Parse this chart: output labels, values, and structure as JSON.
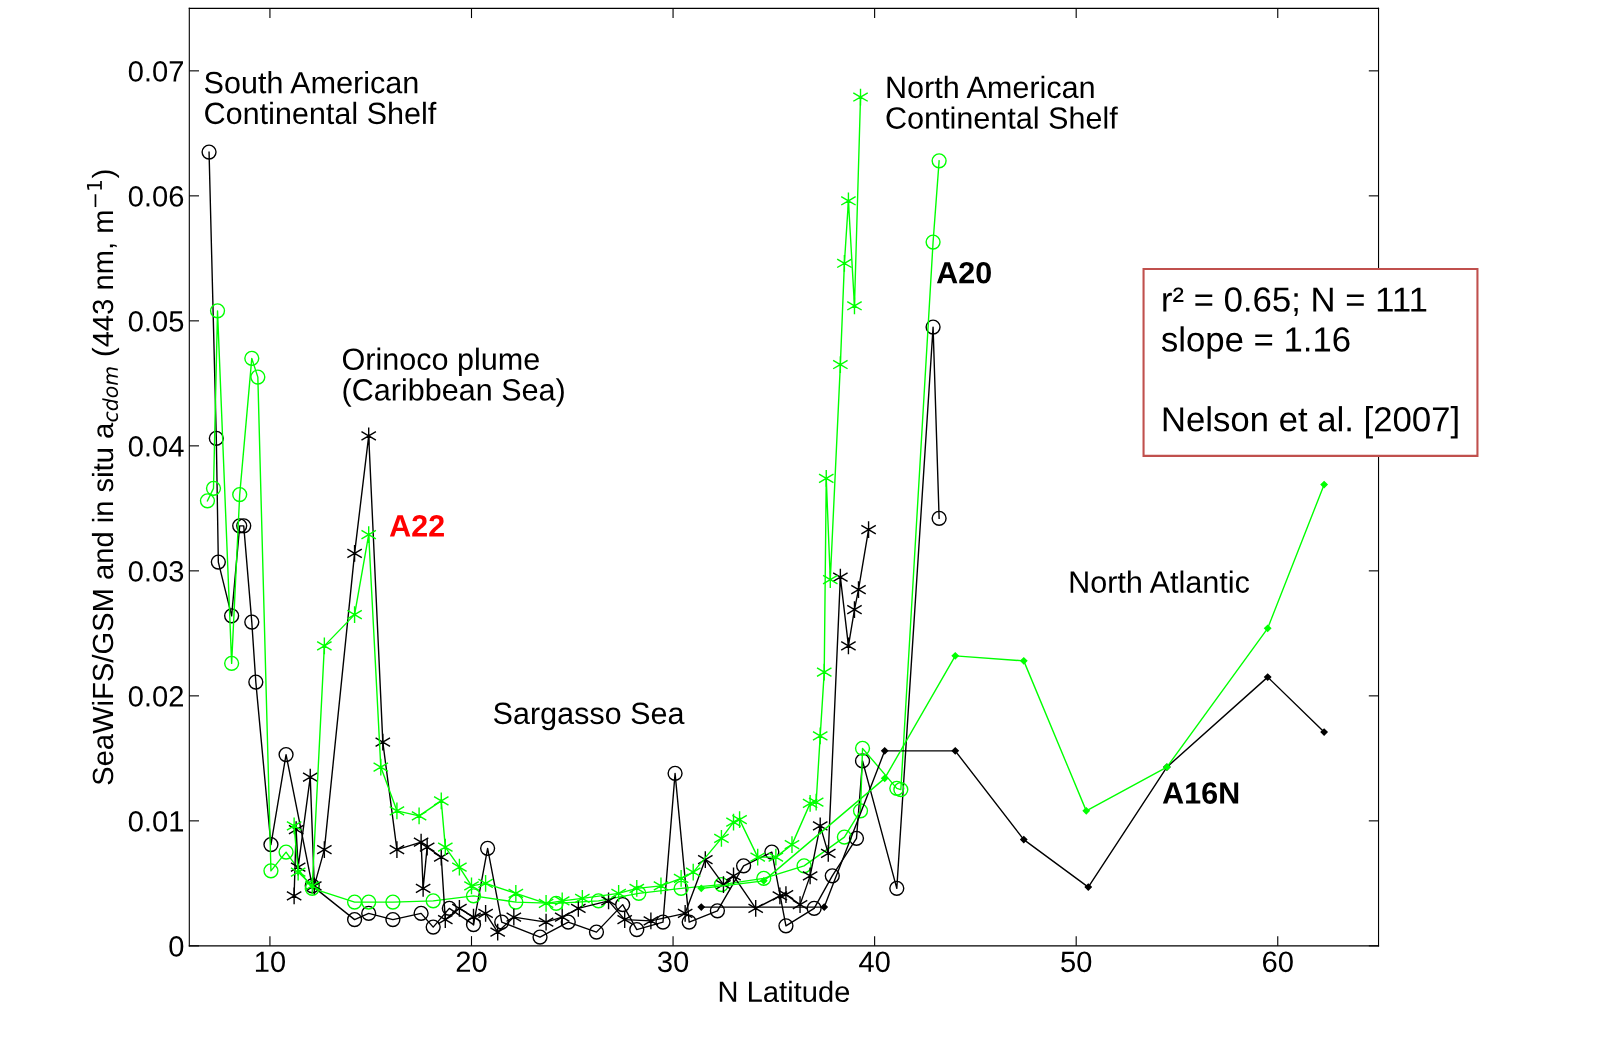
{
  "chart_data": {
    "type": "line",
    "xlabel": "N Latitude",
    "ylabel": "SeaWiFS/GSM and in situ a$_{cdom}$ (443 nm, m$^{−1}$)",
    "xlim": [
      6,
      65
    ],
    "ylim": [
      0,
      0.075
    ],
    "xticks": [
      10,
      20,
      30,
      40,
      50,
      60
    ],
    "yticks": [
      0,
      0.01,
      0.02,
      0.03,
      0.04,
      0.05,
      0.06,
      0.07
    ],
    "grid": false,
    "legend": false,
    "line_style": "solid",
    "series": [
      {
        "color": "#000000",
        "marker": "circle",
        "x": [
          6.98,
          7.34,
          7.44,
          8.1,
          8.5,
          8.7,
          9.1,
          9.3,
          10.05,
          10.8,
          12.1,
          14.2,
          14.9,
          16.1,
          17.5,
          18.1,
          18.9,
          20.1,
          20.8,
          21.5,
          23.4,
          24.8,
          26.2,
          27.5,
          28.2,
          29.5,
          30.1,
          30.8,
          32.2,
          33.5,
          34.9,
          35.6,
          37.0,
          37.9,
          39.1,
          39.4,
          41.1,
          42.9,
          43.2
        ],
        "values": [
          0.0635,
          0.0406,
          0.0307,
          0.0264,
          0.0336,
          0.0336,
          0.0259,
          0.0211,
          0.0081,
          0.0153,
          0.0048,
          0.0021,
          0.0026,
          0.0021,
          0.0026,
          0.0015,
          0.003,
          0.0017,
          0.0078,
          0.0019,
          0.0007,
          0.0019,
          0.0011,
          0.0033,
          0.0013,
          0.0019,
          0.0138,
          0.0019,
          0.0028,
          0.0064,
          0.0075,
          0.0016,
          0.003,
          0.0056,
          0.0086,
          0.0148,
          0.0046,
          0.0495,
          0.0342
        ]
      },
      {
        "color": "#00ff00",
        "marker": "circle",
        "x": [
          6.9,
          7.2,
          7.4,
          8.1,
          8.5,
          9.1,
          9.4,
          10.05,
          10.8,
          12.1,
          14.2,
          14.9,
          16.1,
          18.1,
          20.1,
          22.2,
          24.2,
          26.3,
          28.3,
          30.4,
          32.4,
          34.5,
          36.5,
          38.5,
          39.3,
          39.4,
          41.1,
          41.3,
          42.9,
          43.2
        ],
        "values": [
          0.0356,
          0.0366,
          0.0508,
          0.0226,
          0.0361,
          0.047,
          0.0455,
          0.006,
          0.0075,
          0.0046,
          0.0035,
          0.0035,
          0.0035,
          0.0036,
          0.004,
          0.0035,
          0.0034,
          0.0036,
          0.0042,
          0.0046,
          0.0049,
          0.0054,
          0.0064,
          0.0087,
          0.0108,
          0.0158,
          0.0126,
          0.0125,
          0.0563,
          0.0628
        ]
      },
      {
        "color": "#000000",
        "marker": "cross",
        "x": [
          11.2,
          11.3,
          11.4,
          12.0,
          12.2,
          12.7,
          14.2,
          14.9,
          15.6,
          16.3,
          17.5,
          17.6,
          17.8,
          18.5,
          18.7,
          19.4,
          20.1,
          20.7,
          21.3,
          22.1,
          23.7,
          24.5,
          25.3,
          26.8,
          27.6,
          28.9,
          30.6,
          31.6,
          32.5,
          33.0,
          34.1,
          35.3,
          35.6,
          36.3,
          36.8,
          37.3,
          37.7,
          38.3,
          38.7,
          39.0,
          39.2,
          39.7
        ],
        "values": [
          0.004,
          0.0093,
          0.0063,
          0.0135,
          0.0048,
          0.0077,
          0.0314,
          0.0408,
          0.0163,
          0.0077,
          0.0083,
          0.0046,
          0.0079,
          0.0071,
          0.0021,
          0.003,
          0.0023,
          0.0026,
          0.0011,
          0.0023,
          0.0019,
          0.0023,
          0.003,
          0.0036,
          0.0021,
          0.002,
          0.0026,
          0.0069,
          0.0049,
          0.0056,
          0.003,
          0.004,
          0.0041,
          0.0033,
          0.0056,
          0.0096,
          0.0074,
          0.0295,
          0.024,
          0.0269,
          0.0285,
          0.0333
        ]
      },
      {
        "color": "#00ff00",
        "marker": "cross",
        "x": [
          11.2,
          11.4,
          12.1,
          12.7,
          14.2,
          14.9,
          15.5,
          16.3,
          17.4,
          18.5,
          18.7,
          19.4,
          20.0,
          20.7,
          22.2,
          23.7,
          24.5,
          25.5,
          27.3,
          28.2,
          29.4,
          30.4,
          31.0,
          32.4,
          33.0,
          33.3,
          34.2,
          35.1,
          35.9,
          36.8,
          37.1,
          37.3,
          37.5,
          37.6,
          37.8,
          38.3,
          38.5,
          38.7,
          39.0,
          39.3
        ],
        "values": [
          0.0096,
          0.0059,
          0.0048,
          0.024,
          0.0265,
          0.0329,
          0.0143,
          0.0108,
          0.0104,
          0.0116,
          0.0079,
          0.0063,
          0.0048,
          0.005,
          0.0042,
          0.0034,
          0.0036,
          0.0038,
          0.0042,
          0.0046,
          0.0048,
          0.0054,
          0.0059,
          0.0086,
          0.0099,
          0.0101,
          0.0071,
          0.0071,
          0.0081,
          0.0114,
          0.0115,
          0.0168,
          0.0219,
          0.0374,
          0.0293,
          0.0465,
          0.0546,
          0.0596,
          0.0512,
          0.0679
        ]
      },
      {
        "color": "#000000",
        "marker": "diamond",
        "x": [
          31.4,
          37.5,
          40.5,
          44.0,
          47.4,
          50.6,
          54.5,
          59.5,
          62.3
        ],
        "values": [
          0.0031,
          0.0031,
          0.0156,
          0.0156,
          0.0085,
          0.0047,
          0.0143,
          0.0215,
          0.0171
        ]
      },
      {
        "color": "#00ff00",
        "marker": "diamond",
        "x": [
          31.4,
          34.5,
          40.5,
          44.0,
          47.4,
          50.5,
          54.5,
          59.5,
          62.3
        ],
        "values": [
          0.0046,
          0.0052,
          0.0134,
          0.0232,
          0.0228,
          0.0108,
          0.0143,
          0.0254,
          0.0369
        ]
      }
    ],
    "annotations": [
      "South American\nContinental Shelf",
      "North American\nContinental Shelf",
      "Orinoco plume\n(Caribbean Sea)",
      "Sargasso Sea",
      "North Atlantic",
      "A22",
      "A20",
      "A16N",
      "r² = 0.65; N = 111\nslope = 1.16\n\nNelson et al. [2007]"
    ]
  }
}
